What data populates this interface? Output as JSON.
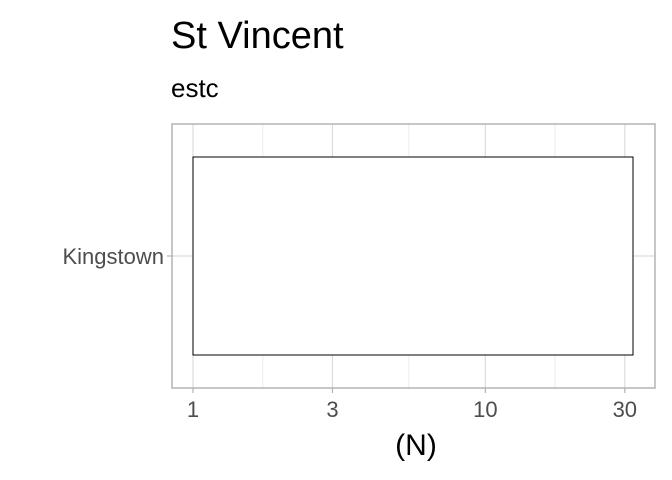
{
  "chart_data": {
    "type": "bar",
    "title": "St Vincent",
    "subtitle": "estc",
    "xlabel": "(N)",
    "ylabel": "",
    "x_scale": "log10",
    "xlim": [
      1,
      32
    ],
    "x_ticks": [
      1,
      3,
      10,
      30
    ],
    "x_tick_labels": [
      "1",
      "3",
      "10",
      "30"
    ],
    "categories": [
      "Kingstown"
    ],
    "values": [
      32
    ],
    "grid": true,
    "legend": "none",
    "colors": {
      "bar_fill": "#ffffff",
      "bar_stroke": "#000000",
      "panel_border": "#b3b3b3",
      "grid_major": "#dcdcdc",
      "grid_minor": "#ebebeb",
      "tick_label": "#4d4d4d"
    }
  }
}
